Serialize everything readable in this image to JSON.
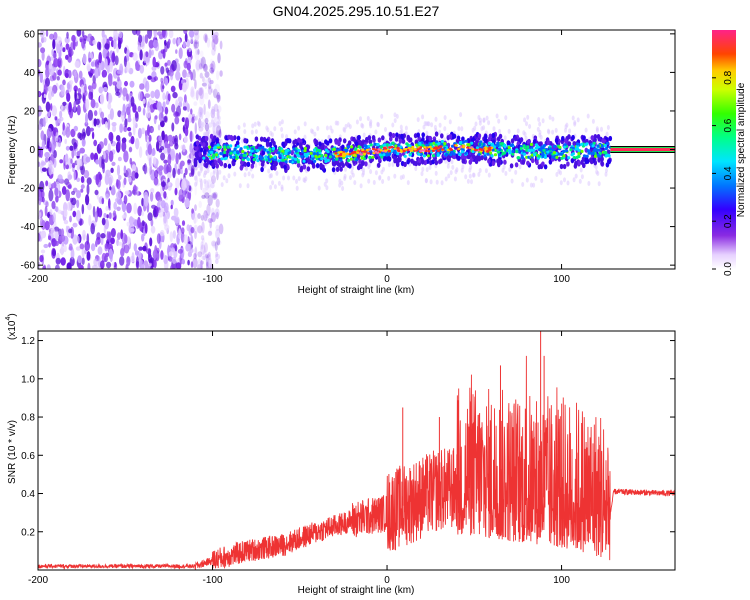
{
  "title": "GN04.2025.295.10.51.E27",
  "chart_data": [
    {
      "type": "heatmap",
      "title": "GN04.2025.295.10.51.E27",
      "xlabel": "Height of straight line (km)",
      "ylabel": "Frequency (Hz)",
      "xlim": [
        -200,
        165
      ],
      "ylim": [
        -62,
        62
      ],
      "x_ticks": [
        -200,
        -100,
        0,
        100
      ],
      "y_ticks": [
        60,
        40,
        20,
        0,
        -20,
        -40,
        -60
      ],
      "colorbar": {
        "label": "Normalized spectral amplitude",
        "range": [
          0,
          1
        ],
        "ticks": [
          0.0,
          0.2,
          0.4,
          0.6,
          0.8
        ],
        "tick_labels": [
          "0.0",
          "0.2",
          "0.4",
          "0.6",
          "0.8"
        ]
      },
      "noise_region_x": [
        -200,
        -103
      ],
      "signal_band_x": [
        -110,
        128
      ],
      "signal_band_halfwidth_hz": 8,
      "carrier_x": [
        128,
        165
      ],
      "carrier_freq_hz": 0,
      "signal_center_hz": [
        {
          "x": -100,
          "y": -1
        },
        {
          "x": -80,
          "y": -2
        },
        {
          "x": -60,
          "y": -3
        },
        {
          "x": -40,
          "y": -3
        },
        {
          "x": -20,
          "y": -2
        },
        {
          "x": -10,
          "y": -1
        },
        {
          "x": 0,
          "y": 0
        },
        {
          "x": 20,
          "y": 0
        },
        {
          "x": 40,
          "y": 1
        },
        {
          "x": 60,
          "y": 0
        },
        {
          "x": 80,
          "y": -1
        },
        {
          "x": 100,
          "y": -1
        },
        {
          "x": 128,
          "y": 0
        }
      ]
    },
    {
      "type": "line",
      "xlabel": "Height of straight line (km)",
      "ylabel": "SNR (10 * v/v)",
      "y_scale_label": "(x10",
      "y_scale_exp": "4",
      "y_scale_close": ")",
      "xlim": [
        -200,
        165
      ],
      "ylim": [
        0,
        1.25
      ],
      "x_ticks": [
        -200,
        -100,
        0,
        100
      ],
      "y_ticks": [
        0.2,
        0.4,
        0.6,
        0.8,
        1.0,
        1.2
      ],
      "y_tick_labels": [
        "0.2",
        "0.4",
        "0.6",
        "0.8",
        "1.0",
        "1.2"
      ],
      "color": "#ee3333",
      "envelope": [
        {
          "x": -200,
          "y": 0.02
        },
        {
          "x": -110,
          "y": 0.02
        },
        {
          "x": -100,
          "y": 0.05
        },
        {
          "x": -80,
          "y": 0.1
        },
        {
          "x": -60,
          "y": 0.13
        },
        {
          "x": -40,
          "y": 0.2
        },
        {
          "x": -20,
          "y": 0.26
        },
        {
          "x": 0,
          "y": 0.3
        },
        {
          "x": 10,
          "y": 0.34
        },
        {
          "x": 20,
          "y": 0.38
        },
        {
          "x": 30,
          "y": 0.42
        },
        {
          "x": 50,
          "y": 0.43
        },
        {
          "x": 70,
          "y": 0.4
        },
        {
          "x": 90,
          "y": 0.38
        },
        {
          "x": 110,
          "y": 0.35
        },
        {
          "x": 128,
          "y": 0.3
        },
        {
          "x": 130,
          "y": 0.41
        },
        {
          "x": 165,
          "y": 0.4
        }
      ],
      "peaks": [
        {
          "x": 88,
          "y": 1.25
        },
        {
          "x": 65,
          "y": 1.07
        },
        {
          "x": 90,
          "y": 1.12
        },
        {
          "x": 9,
          "y": 0.85
        },
        {
          "x": 30,
          "y": 0.8
        },
        {
          "x": 47,
          "y": 0.75
        }
      ]
    }
  ]
}
